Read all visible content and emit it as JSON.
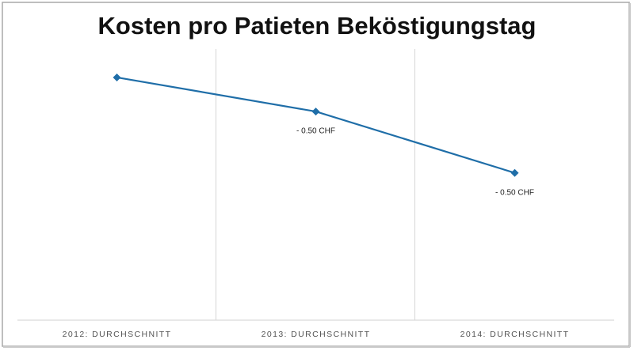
{
  "chart_data": {
    "type": "line",
    "title": "Kosten pro Patieten Beköstigungstag",
    "categories": [
      "2012: DURCHSCHNITT",
      "2013: DURCHSCHNITT",
      "2014: DURCHSCHNITT"
    ],
    "values": [
      89,
      76.5,
      54
    ],
    "annotations": [
      null,
      "- 0.50 CHF",
      "- 0.50 CHF"
    ],
    "color": "#1f6ea8",
    "ylim": [
      0,
      100
    ]
  }
}
